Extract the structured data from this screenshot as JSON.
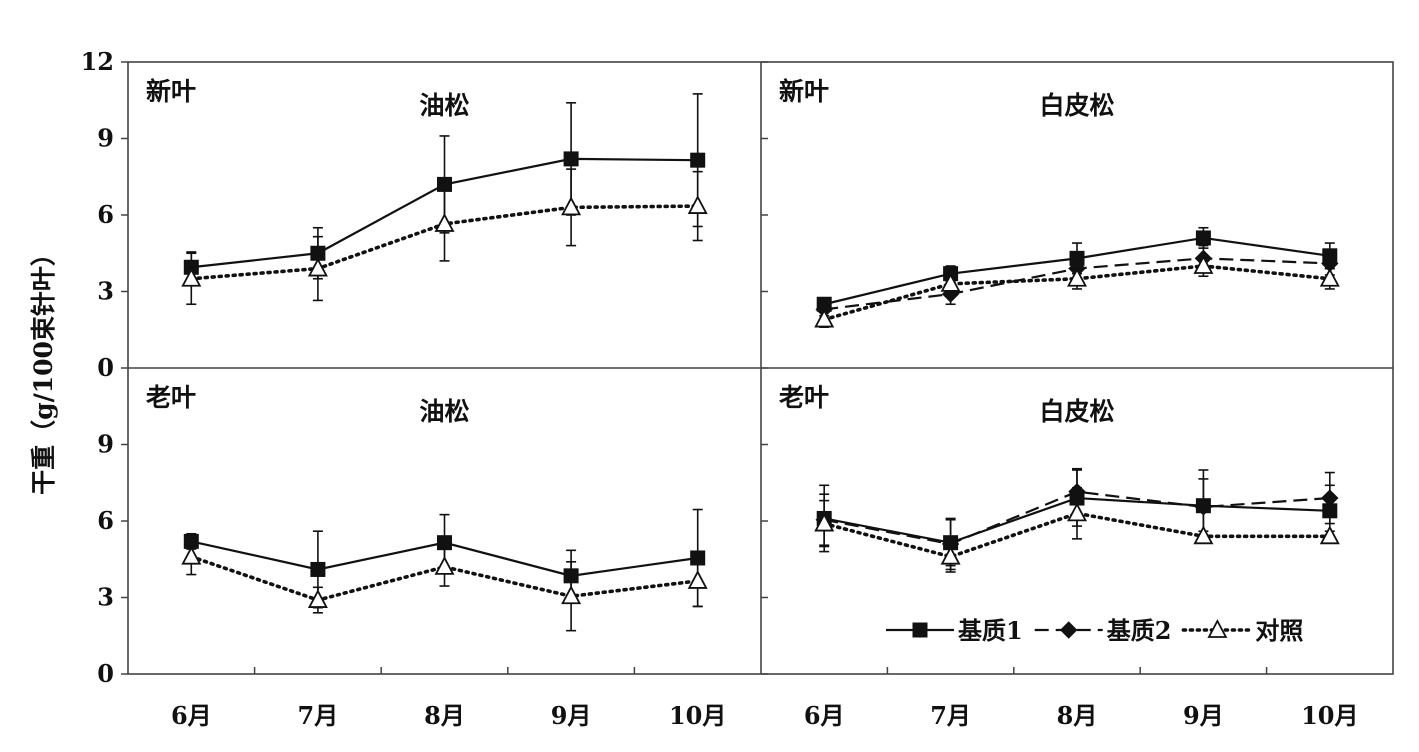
{
  "chart_data": {
    "type": "line",
    "ylabel": "干重（g/100束针叶）",
    "categories": [
      "6月",
      "7月",
      "8月",
      "9月",
      "10月"
    ],
    "ylim": [
      0,
      12
    ],
    "yticks": [
      "0",
      "3",
      "6",
      "9",
      "12"
    ],
    "legend": {
      "position": "bottom-right",
      "entries": [
        {
          "name": "基质1",
          "marker": "square",
          "line": "solid"
        },
        {
          "name": "基质2",
          "marker": "diamond",
          "line": "dashed"
        },
        {
          "name": "对照",
          "marker": "triangle-open",
          "line": "dotted"
        }
      ]
    },
    "panels": [
      {
        "id": "tl",
        "leaf": "新叶",
        "species": "油松",
        "series": [
          {
            "name": "基质1",
            "values": [
              3.95,
              4.5,
              7.2,
              8.2,
              8.15
            ],
            "errors": [
              0.6,
              1.0,
              1.9,
              2.2,
              2.6
            ]
          },
          {
            "name": "对照",
            "values": [
              3.5,
              3.9,
              5.65,
              6.3,
              6.35
            ],
            "errors": [
              1.0,
              1.25,
              1.45,
              1.5,
              1.35
            ]
          }
        ]
      },
      {
        "id": "tr",
        "leaf": "新叶",
        "species": "白皮松",
        "series": [
          {
            "name": "基质1",
            "values": [
              2.5,
              3.7,
              4.3,
              5.1,
              4.4
            ],
            "errors": [
              0.25,
              0.3,
              0.6,
              0.4,
              0.5
            ]
          },
          {
            "name": "基质2",
            "values": [
              2.3,
              2.9,
              3.9,
              4.3,
              4.1
            ],
            "errors": [
              0.25,
              0.4,
              0.6,
              0.5,
              0.45
            ]
          },
          {
            "name": "对照",
            "values": [
              1.9,
              3.3,
              3.5,
              4.0,
              3.5
            ],
            "errors": [
              0.3,
              0.35,
              0.4,
              0.4,
              0.4
            ]
          }
        ]
      },
      {
        "id": "bl",
        "leaf": "老叶",
        "species": "油松",
        "series": [
          {
            "name": "基质1",
            "values": [
              5.2,
              4.1,
              5.15,
              3.85,
              4.55
            ],
            "errors": [
              0.3,
              1.5,
              1.1,
              1.0,
              1.9
            ]
          },
          {
            "name": "对照",
            "values": [
              4.6,
              2.9,
              4.2,
              3.05,
              3.65
            ],
            "errors": [
              0.7,
              0.5,
              0.75,
              1.35,
              1.0
            ]
          }
        ]
      },
      {
        "id": "br",
        "leaf": "老叶",
        "species": "白皮松",
        "series": [
          {
            "name": "基质1",
            "values": [
              6.1,
              5.15,
              6.9,
              6.6,
              6.4
            ],
            "errors": [
              1.3,
              0.9,
              1.1,
              1.4,
              1.0
            ]
          },
          {
            "name": "基质2",
            "values": [
              6.05,
              5.1,
              7.15,
              6.55,
              6.9
            ],
            "errors": [
              1.0,
              1.0,
              0.9,
              1.1,
              1.0
            ]
          },
          {
            "name": "对照",
            "values": [
              5.9,
              4.6,
              6.3,
              5.4,
              5.4
            ],
            "errors": [
              0.9,
              0.6,
              1.0,
              0.2,
              0.2
            ]
          }
        ]
      }
    ]
  }
}
